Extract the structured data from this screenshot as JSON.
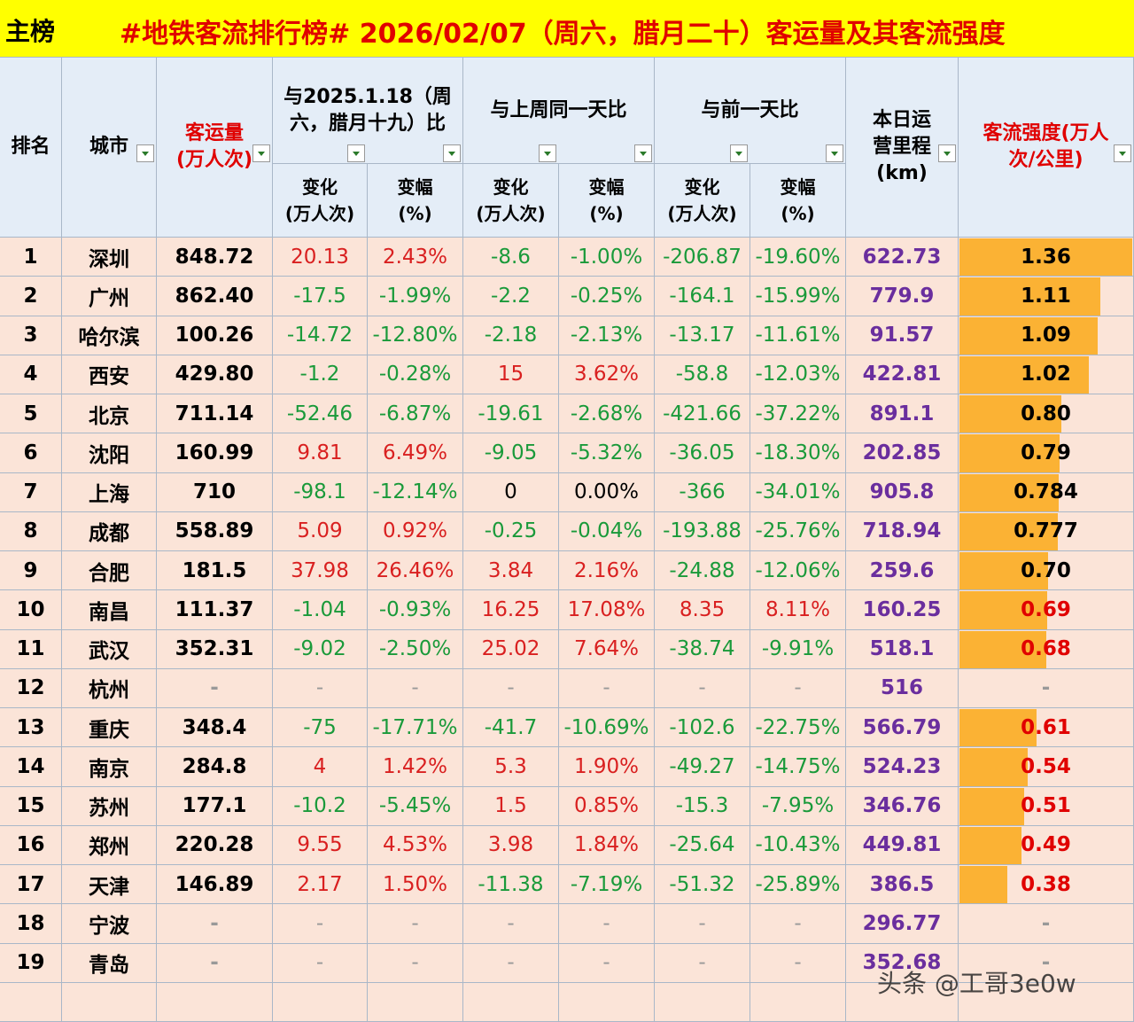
{
  "title_bar": {
    "label": "主榜",
    "title": "#地铁客流排行榜# 2026/02/07（周六，腊月二十）客运量及其客流强度"
  },
  "header": {
    "rank": "排名",
    "city": "城市",
    "volume": "客运量(万人次)",
    "groups": [
      "与2025.1.18（周六，腊月十九）比",
      "与上周同一天比",
      "与前一天比"
    ],
    "sub": [
      [
        "变化",
        "(万人次)"
      ],
      [
        "变幅",
        "(%)"
      ],
      [
        "变化",
        "(万人次)"
      ],
      [
        "变幅",
        "(%)"
      ],
      [
        "变化",
        "(万人次)"
      ],
      [
        "变幅",
        "(%)"
      ]
    ],
    "mileage": "本日运营里程(km)",
    "intensity": "客流强度(万人次/公里)"
  },
  "rows": [
    {
      "rank": "1",
      "city": "深圳",
      "volume": "848.72",
      "cells": [
        "20.13",
        "2.43%",
        "-8.6",
        "-1.00%",
        "-206.87",
        "-19.60%"
      ],
      "mileage": "622.73",
      "intensity": "1.36",
      "intensity_color": "#000000"
    },
    {
      "rank": "2",
      "city": "广州",
      "volume": "862.40",
      "cells": [
        "-17.5",
        "-1.99%",
        "-2.2",
        "-0.25%",
        "-164.1",
        "-15.99%"
      ],
      "mileage": "779.9",
      "intensity": "1.11",
      "intensity_color": "#000000"
    },
    {
      "rank": "3",
      "city": "哈尔滨",
      "volume": "100.26",
      "cells": [
        "-14.72",
        "-12.80%",
        "-2.18",
        "-2.13%",
        "-13.17",
        "-11.61%"
      ],
      "mileage": "91.57",
      "intensity": "1.09",
      "intensity_color": "#000000"
    },
    {
      "rank": "4",
      "city": "西安",
      "volume": "429.80",
      "cells": [
        "-1.2",
        "-0.28%",
        "15",
        "3.62%",
        "-58.8",
        "-12.03%"
      ],
      "mileage": "422.81",
      "intensity": "1.02",
      "intensity_color": "#000000"
    },
    {
      "rank": "5",
      "city": "北京",
      "volume": "711.14",
      "cells": [
        "-52.46",
        "-6.87%",
        "-19.61",
        "-2.68%",
        "-421.66",
        "-37.22%"
      ],
      "mileage": "891.1",
      "intensity": "0.80",
      "intensity_color": "#000000"
    },
    {
      "rank": "6",
      "city": "沈阳",
      "volume": "160.99",
      "cells": [
        "9.81",
        "6.49%",
        "-9.05",
        "-5.32%",
        "-36.05",
        "-18.30%"
      ],
      "mileage": "202.85",
      "intensity": "0.79",
      "intensity_color": "#000000"
    },
    {
      "rank": "7",
      "city": "上海",
      "volume": "710",
      "cells": [
        "-98.1",
        "-12.14%",
        "0",
        "0.00%",
        "-366",
        "-34.01%"
      ],
      "mileage": "905.8",
      "intensity": "0.784",
      "intensity_color": "#000000"
    },
    {
      "rank": "8",
      "city": "成都",
      "volume": "558.89",
      "cells": [
        "5.09",
        "0.92%",
        "-0.25",
        "-0.04%",
        "-193.88",
        "-25.76%"
      ],
      "mileage": "718.94",
      "intensity": "0.777",
      "intensity_color": "#000000"
    },
    {
      "rank": "9",
      "city": "合肥",
      "volume": "181.5",
      "cells": [
        "37.98",
        "26.46%",
        "3.84",
        "2.16%",
        "-24.88",
        "-12.06%"
      ],
      "mileage": "259.6",
      "intensity": "0.70",
      "intensity_color": "#000000"
    },
    {
      "rank": "10",
      "city": "南昌",
      "volume": "111.37",
      "cells": [
        "-1.04",
        "-0.93%",
        "16.25",
        "17.08%",
        "8.35",
        "8.11%"
      ],
      "mileage": "160.25",
      "intensity": "0.69",
      "intensity_color": "#e00000"
    },
    {
      "rank": "11",
      "city": "武汉",
      "volume": "352.31",
      "cells": [
        "-9.02",
        "-2.50%",
        "25.02",
        "7.64%",
        "-38.74",
        "-9.91%"
      ],
      "mileage": "518.1",
      "intensity": "0.68",
      "intensity_color": "#e00000"
    },
    {
      "rank": "12",
      "city": "杭州",
      "volume": "-",
      "cells": [
        "-",
        "-",
        "-",
        "-",
        "-",
        "-"
      ],
      "mileage": "516",
      "intensity": "-",
      "intensity_color": "#999999"
    },
    {
      "rank": "13",
      "city": "重庆",
      "volume": "348.4",
      "cells": [
        "-75",
        "-17.71%",
        "-41.7",
        "-10.69%",
        "-102.6",
        "-22.75%"
      ],
      "mileage": "566.79",
      "intensity": "0.61",
      "intensity_color": "#e00000"
    },
    {
      "rank": "14",
      "city": "南京",
      "volume": "284.8",
      "cells": [
        "4",
        "1.42%",
        "5.3",
        "1.90%",
        "-49.27",
        "-14.75%"
      ],
      "mileage": "524.23",
      "intensity": "0.54",
      "intensity_color": "#e00000"
    },
    {
      "rank": "15",
      "city": "苏州",
      "volume": "177.1",
      "cells": [
        "-10.2",
        "-5.45%",
        "1.5",
        "0.85%",
        "-15.3",
        "-7.95%"
      ],
      "mileage": "346.76",
      "intensity": "0.51",
      "intensity_color": "#e00000"
    },
    {
      "rank": "16",
      "city": "郑州",
      "volume": "220.28",
      "cells": [
        "9.55",
        "4.53%",
        "3.98",
        "1.84%",
        "-25.64",
        "-10.43%"
      ],
      "mileage": "449.81",
      "intensity": "0.49",
      "intensity_color": "#e00000"
    },
    {
      "rank": "17",
      "city": "天津",
      "volume": "146.89",
      "cells": [
        "2.17",
        "1.50%",
        "-11.38",
        "-7.19%",
        "-51.32",
        "-25.89%"
      ],
      "mileage": "386.5",
      "intensity": "0.38",
      "intensity_color": "#e00000"
    },
    {
      "rank": "18",
      "city": "宁波",
      "volume": "-",
      "cells": [
        "-",
        "-",
        "-",
        "-",
        "-",
        "-"
      ],
      "mileage": "296.77",
      "intensity": "-",
      "intensity_color": "#999999"
    },
    {
      "rank": "19",
      "city": "青岛",
      "volume": "-",
      "cells": [
        "-",
        "-",
        "-",
        "-",
        "-",
        "-"
      ],
      "mileage": "352.68",
      "intensity": "-",
      "intensity_color": "#999999"
    }
  ],
  "watermark": "头条 @工哥3e0w"
}
